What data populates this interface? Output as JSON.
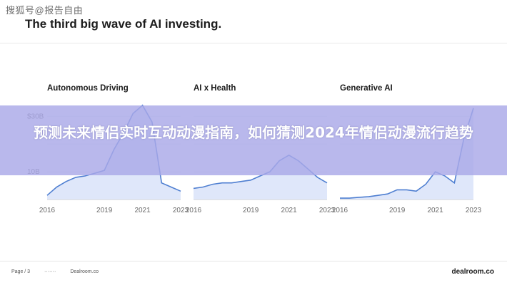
{
  "watermark": "搜狐号@报告自由",
  "headline": "The third big wave of AI investing.",
  "banner_text": "预测未来情侣实时互动动漫指南，如何猜测2024年情侣动漫流行趋势",
  "footer": {
    "page_label": "Page / 3",
    "left_small": "·······",
    "source": "Dealroom.co",
    "brand": "dealroom.co"
  },
  "chart_data": [
    {
      "type": "area",
      "title": "Autonomous Driving",
      "x": [
        2016,
        2016.5,
        2017,
        2017.5,
        2018,
        2018.5,
        2019,
        2019.5,
        2020,
        2020.5,
        2021,
        2021.5,
        2022,
        2022.5,
        2023
      ],
      "y": [
        1.5,
        4.5,
        6.5,
        8,
        8.5,
        9.5,
        10.5,
        18,
        24,
        31,
        34,
        28,
        6,
        4.5,
        3
      ],
      "x_ticks": [
        "2016",
        "2019",
        "2021",
        "2023"
      ],
      "y_ticks": [
        "$30B",
        "10B"
      ],
      "ylim": [
        0,
        36
      ],
      "color": "#4f7fd1"
    },
    {
      "type": "area",
      "title": "AI x Health",
      "x": [
        2016,
        2016.5,
        2017,
        2017.5,
        2018,
        2018.5,
        2019,
        2019.5,
        2020,
        2020.5,
        2021,
        2021.5,
        2022,
        2022.5,
        2023
      ],
      "y": [
        4,
        4.5,
        5.5,
        6,
        6,
        6.5,
        7,
        8.5,
        10,
        14,
        16,
        14,
        11,
        8,
        6
      ],
      "x_ticks": [
        "2016",
        "2019",
        "2021",
        "2023"
      ],
      "ylim": [
        0,
        36
      ],
      "color": "#4f7fd1"
    },
    {
      "type": "area",
      "title": "Generative AI",
      "x": [
        2016,
        2016.5,
        2017,
        2017.5,
        2018,
        2018.5,
        2019,
        2019.5,
        2020,
        2020.5,
        2021,
        2021.5,
        2022,
        2022.5,
        2023
      ],
      "y": [
        0.5,
        0.5,
        0.8,
        1,
        1.5,
        2,
        3.5,
        3.5,
        3,
        5.5,
        10,
        8.5,
        6,
        22,
        33
      ],
      "x_ticks": [
        "2016",
        "2019",
        "2021",
        "2023"
      ],
      "ylim": [
        0,
        36
      ],
      "color": "#4f7fd1"
    }
  ]
}
